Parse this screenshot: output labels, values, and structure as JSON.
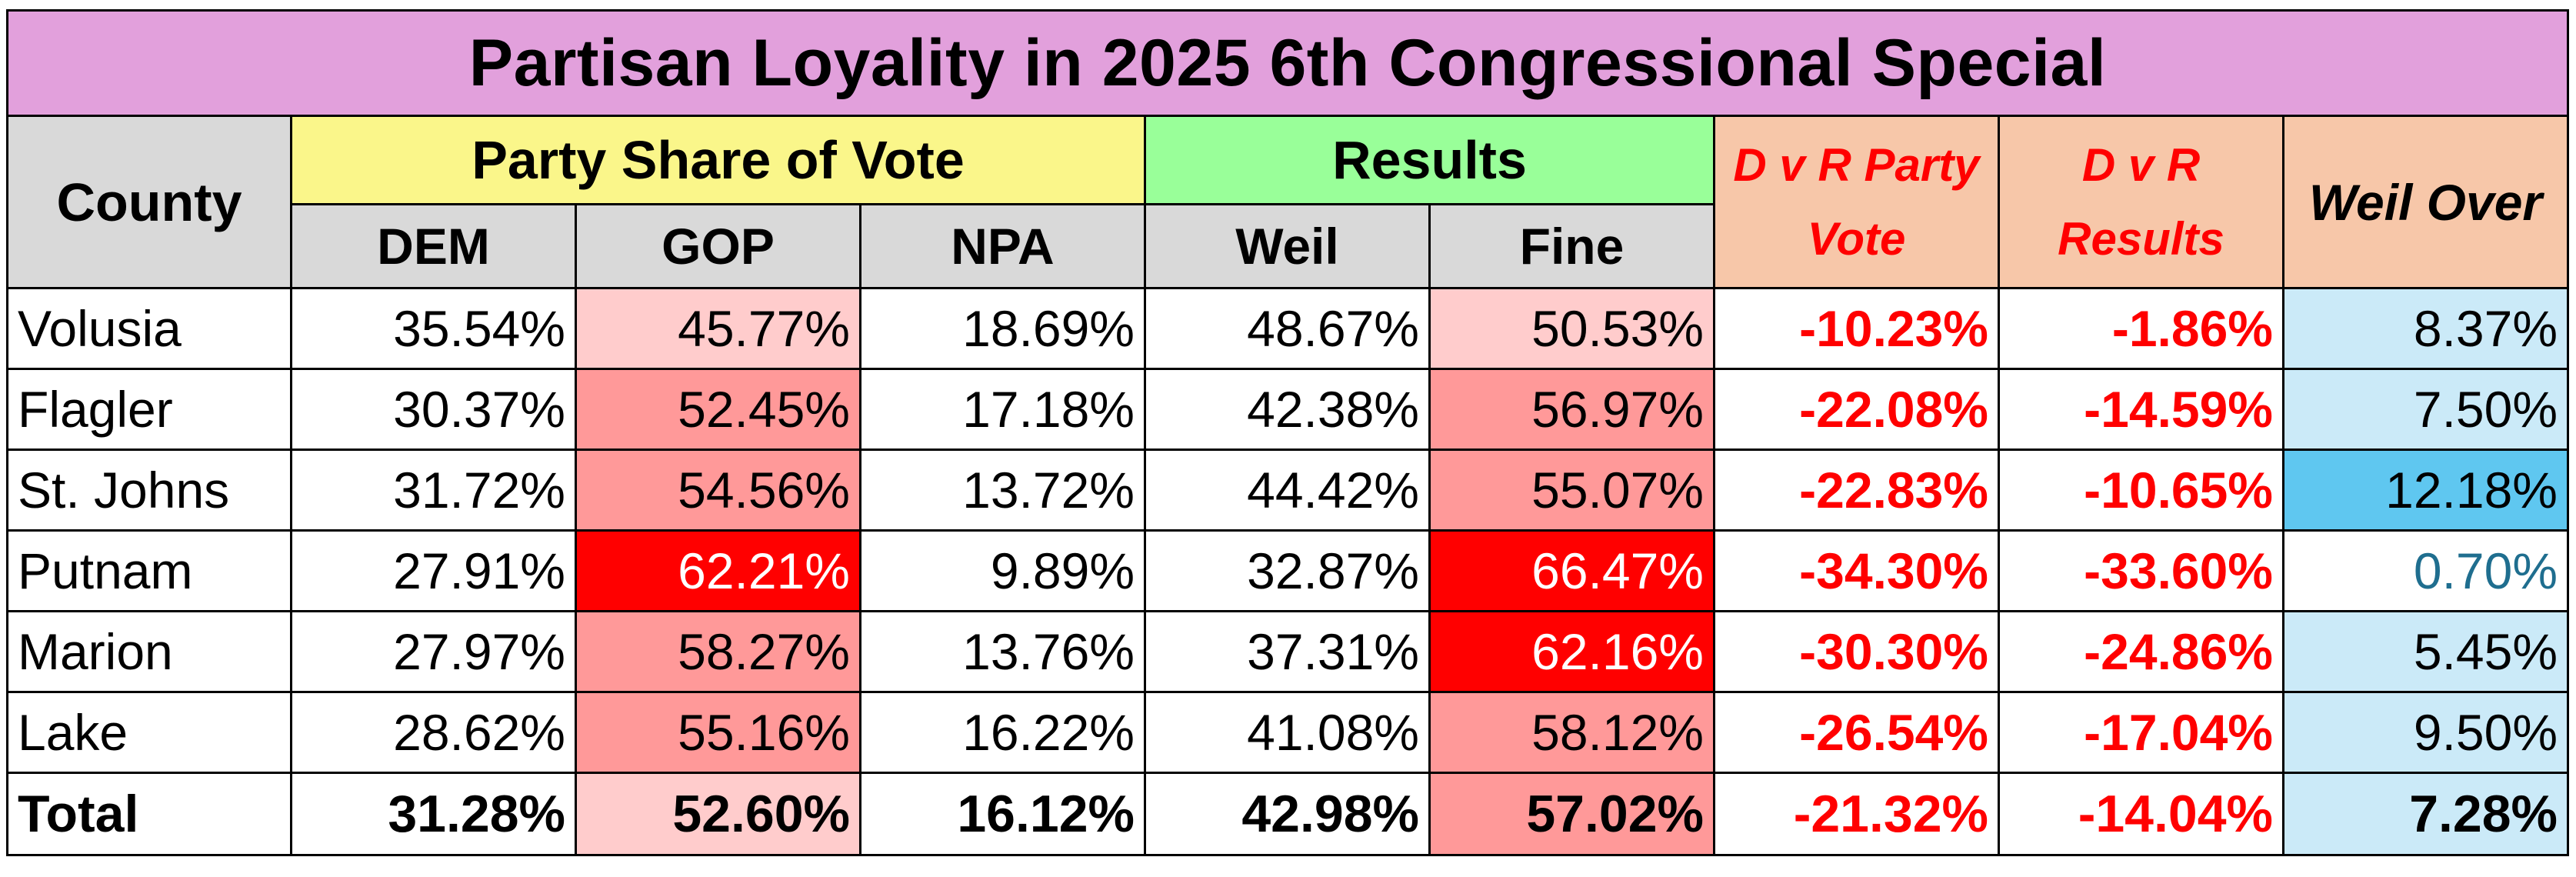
{
  "title": "Partisan Loyality in 2025 6th Congressional Special",
  "headers": {
    "county": "County",
    "party_share": "Party Share of Vote",
    "results": "Results",
    "dvr_party_line1": "D v R Party",
    "dvr_party_line2": "Vote",
    "dvr_results_line1": "D v R",
    "dvr_results_line2": "Results",
    "weil_over": "Weil Over",
    "dem": "DEM",
    "gop": "GOP",
    "npa": "NPA",
    "weil": "Weil",
    "fine": "Fine"
  },
  "rows": [
    {
      "county": "Volusia",
      "dem": "35.54%",
      "gop": "45.77%",
      "npa": "18.69%",
      "weil": "48.67%",
      "fine": "50.53%",
      "dvr_party": "-10.23%",
      "dvr_results": "-1.86%",
      "weil_over": "8.37%"
    },
    {
      "county": "Flagler",
      "dem": "30.37%",
      "gop": "52.45%",
      "npa": "17.18%",
      "weil": "42.38%",
      "fine": "56.97%",
      "dvr_party": "-22.08%",
      "dvr_results": "-14.59%",
      "weil_over": "7.50%"
    },
    {
      "county": "St. Johns",
      "dem": "31.72%",
      "gop": "54.56%",
      "npa": "13.72%",
      "weil": "44.42%",
      "fine": "55.07%",
      "dvr_party": "-22.83%",
      "dvr_results": "-10.65%",
      "weil_over": "12.18%"
    },
    {
      "county": "Putnam",
      "dem": "27.91%",
      "gop": "62.21%",
      "npa": "9.89%",
      "weil": "32.87%",
      "fine": "66.47%",
      "dvr_party": "-34.30%",
      "dvr_results": "-33.60%",
      "weil_over": "0.70%"
    },
    {
      "county": "Marion",
      "dem": "27.97%",
      "gop": "58.27%",
      "npa": "13.76%",
      "weil": "37.31%",
      "fine": "62.16%",
      "dvr_party": "-30.30%",
      "dvr_results": "-24.86%",
      "weil_over": "5.45%"
    },
    {
      "county": "Lake",
      "dem": "28.62%",
      "gop": "55.16%",
      "npa": "16.22%",
      "weil": "41.08%",
      "fine": "58.12%",
      "dvr_party": "-26.54%",
      "dvr_results": "-17.04%",
      "weil_over": "9.50%"
    }
  ],
  "total": {
    "county": "Total",
    "dem": "31.28%",
    "gop": "52.60%",
    "npa": "16.12%",
    "weil": "42.98%",
    "fine": "57.02%",
    "dvr_party": "-21.32%",
    "dvr_results": "-14.04%",
    "weil_over": "7.28%"
  },
  "colors": {
    "title_bg": "#e2a0dc",
    "party_share_bg": "#faf68a",
    "results_bg": "#99ff99",
    "dvr_bg": "#f7c7a9",
    "header_gray": "#d9d9d9",
    "negative_text": "#ff0000",
    "gop_light": "#ffcccc",
    "gop_mid": "#ff9999",
    "gop_strong": "#ff0000",
    "weil_over_light": "#cbeaf8",
    "weil_over_strong": "#5fc7f0"
  }
}
